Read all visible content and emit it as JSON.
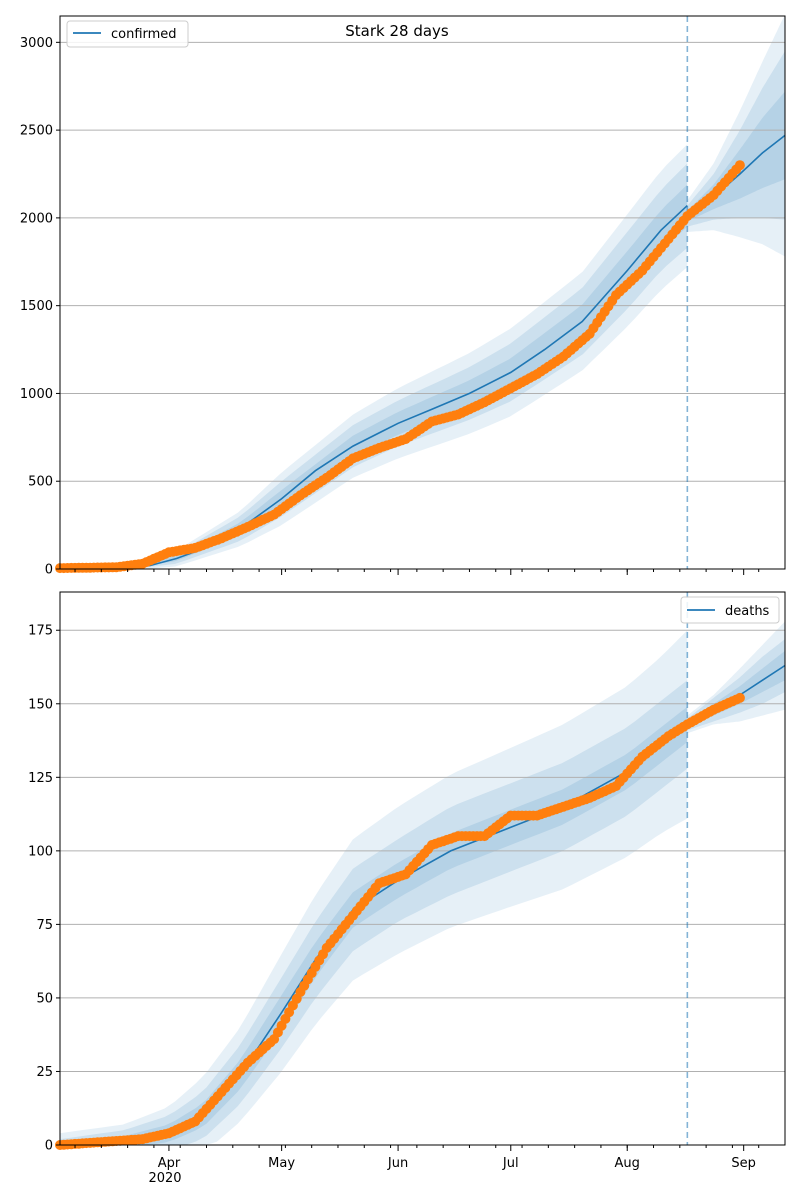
{
  "chart_data": [
    {
      "type": "line",
      "title": "Stark 28 days",
      "legend": {
        "label": "confirmed",
        "placement": "top-left"
      },
      "xlim": [
        "2020-03-03",
        "2020-09-12"
      ],
      "ylim": [
        0,
        3150
      ],
      "yticks": [
        0,
        500,
        1000,
        1500,
        2000,
        2500,
        3000
      ],
      "grid": "horizontal",
      "forecast_start": "2020-08-17",
      "fit_line": {
        "x": [
          "2020-03-03",
          "2020-03-20",
          "2020-03-27",
          "2020-04-03",
          "2020-04-12",
          "2020-04-20",
          "2020-05-01",
          "2020-05-10",
          "2020-05-20",
          "2020-06-01",
          "2020-06-10",
          "2020-06-20",
          "2020-07-01",
          "2020-07-10",
          "2020-07-20",
          "2020-08-01",
          "2020-08-10",
          "2020-08-17"
        ],
        "y": [
          0,
          5,
          20,
          60,
          130,
          230,
          400,
          560,
          700,
          830,
          910,
          1000,
          1120,
          1250,
          1410,
          1700,
          1930,
          2070
        ]
      },
      "forecast_line": {
        "x": [
          "2020-08-17",
          "2020-08-24",
          "2020-08-31",
          "2020-09-06",
          "2020-09-12"
        ],
        "y": [
          2010,
          2120,
          2250,
          2370,
          2470
        ]
      },
      "bands": {
        "x": [
          "2020-03-03",
          "2020-03-20",
          "2020-04-03",
          "2020-04-20",
          "2020-05-01",
          "2020-05-20",
          "2020-06-01",
          "2020-06-20",
          "2020-07-01",
          "2020-07-20",
          "2020-08-01",
          "2020-08-10",
          "2020-08-17"
        ],
        "center": [
          0,
          5,
          60,
          230,
          400,
          700,
          830,
          1000,
          1120,
          1410,
          1700,
          1930,
          2070
        ],
        "half_widths": [
          [
            3,
            5,
            15,
            35,
            50,
            60,
            65,
            75,
            80,
            95,
            110,
            115,
            120
          ],
          [
            6,
            10,
            30,
            70,
            100,
            120,
            130,
            150,
            165,
            190,
            220,
            230,
            240
          ],
          [
            9,
            15,
            45,
            100,
            150,
            180,
            200,
            230,
            250,
            280,
            320,
            340,
            350
          ]
        ]
      },
      "forecast_bands": {
        "x": [
          "2020-08-17",
          "2020-08-24",
          "2020-08-31",
          "2020-09-06",
          "2020-09-12"
        ],
        "center": [
          2010,
          2120,
          2250,
          2370,
          2470
        ],
        "half_widths": [
          [
            30,
            70,
            140,
            200,
            250
          ],
          [
            60,
            130,
            250,
            370,
            480
          ],
          [
            90,
            190,
            360,
            520,
            690
          ]
        ]
      },
      "observed": {
        "x": [
          "2020-03-03",
          "2020-03-18",
          "2020-03-25",
          "2020-04-01",
          "2020-04-08",
          "2020-04-15",
          "2020-04-22",
          "2020-04-29",
          "2020-05-06",
          "2020-05-13",
          "2020-05-20",
          "2020-05-27",
          "2020-06-03",
          "2020-06-10",
          "2020-06-17",
          "2020-06-24",
          "2020-07-01",
          "2020-07-08",
          "2020-07-15",
          "2020-07-22",
          "2020-07-29",
          "2020-08-05",
          "2020-08-12",
          "2020-08-17",
          "2020-08-24",
          "2020-08-31"
        ],
        "y": [
          5,
          10,
          30,
          95,
          120,
          175,
          240,
          310,
          420,
          520,
          630,
          690,
          740,
          840,
          880,
          950,
          1030,
          1110,
          1210,
          1340,
          1560,
          1700,
          1880,
          2010,
          2130,
          2300
        ]
      }
    },
    {
      "type": "line",
      "title": "",
      "legend": {
        "label": "deaths",
        "placement": "top-right"
      },
      "xlim": [
        "2020-03-03",
        "2020-09-12"
      ],
      "ylim": [
        0,
        188
      ],
      "yticks": [
        0,
        25,
        50,
        75,
        100,
        125,
        150,
        175
      ],
      "xtick_labels": [
        "Apr",
        "May",
        "Jun",
        "Jul",
        "Aug",
        "Sep"
      ],
      "xtick_dates": [
        "2020-04-01",
        "2020-05-01",
        "2020-06-01",
        "2020-07-01",
        "2020-08-01",
        "2020-09-01"
      ],
      "year_label": "2020",
      "grid": "horizontal",
      "forecast_start": "2020-08-17",
      "fit_line": {
        "x": [
          "2020-03-03",
          "2020-03-20",
          "2020-04-01",
          "2020-04-10",
          "2020-04-20",
          "2020-05-01",
          "2020-05-10",
          "2020-05-20",
          "2020-06-01",
          "2020-06-15",
          "2020-07-01",
          "2020-07-15",
          "2020-08-01",
          "2020-08-10",
          "2020-08-17"
        ],
        "y": [
          0,
          1,
          4,
          10,
          24,
          45,
          63,
          80,
          90,
          100,
          108,
          115,
          127,
          136,
          143
        ]
      },
      "forecast_line": {
        "x": [
          "2020-08-17",
          "2020-08-24",
          "2020-08-31",
          "2020-09-06",
          "2020-09-12"
        ],
        "y": [
          143,
          148,
          153,
          158,
          163
        ]
      },
      "bands": {
        "x": [
          "2020-03-03",
          "2020-03-20",
          "2020-04-01",
          "2020-04-10",
          "2020-04-20",
          "2020-05-01",
          "2020-05-10",
          "2020-05-20",
          "2020-06-01",
          "2020-06-15",
          "2020-07-01",
          "2020-07-15",
          "2020-08-01",
          "2020-08-10",
          "2020-08-17"
        ],
        "center": [
          0,
          1,
          4,
          10,
          24,
          45,
          63,
          80,
          90,
          100,
          108,
          115,
          127,
          136,
          143
        ],
        "half_widths": [
          [
            1,
            2,
            3,
            4,
            5,
            6,
            6,
            6,
            6,
            6,
            6,
            6,
            6,
            6,
            6
          ],
          [
            2,
            4,
            6,
            8,
            10,
            12,
            13,
            14,
            14,
            15,
            15,
            15,
            15,
            15,
            15
          ],
          [
            4,
            6,
            9,
            13,
            16,
            20,
            22,
            24,
            25,
            26,
            27,
            28,
            29,
            30,
            32
          ]
        ]
      },
      "forecast_bands": {
        "x": [
          "2020-08-17",
          "2020-08-24",
          "2020-08-31",
          "2020-09-06",
          "2020-09-12"
        ],
        "center": [
          143,
          148,
          153,
          158,
          163
        ],
        "half_widths": [
          [
            1,
            2,
            3,
            4,
            5
          ],
          [
            2,
            4,
            6,
            8,
            9
          ],
          [
            3,
            5,
            9,
            12,
            15
          ]
        ]
      },
      "observed": {
        "x": [
          "2020-03-03",
          "2020-03-25",
          "2020-04-01",
          "2020-04-08",
          "2020-04-15",
          "2020-04-22",
          "2020-04-29",
          "2020-05-06",
          "2020-05-13",
          "2020-05-20",
          "2020-05-27",
          "2020-06-03",
          "2020-06-10",
          "2020-06-17",
          "2020-06-24",
          "2020-07-01",
          "2020-07-08",
          "2020-07-15",
          "2020-07-22",
          "2020-07-29",
          "2020-08-05",
          "2020-08-12",
          "2020-08-17",
          "2020-08-24",
          "2020-08-31"
        ],
        "y": [
          0,
          2,
          4,
          8,
          18,
          28,
          36,
          52,
          67,
          78,
          89,
          92,
          102,
          105,
          105,
          112,
          112,
          115,
          118,
          122,
          132,
          139,
          143,
          148,
          152
        ]
      }
    }
  ]
}
